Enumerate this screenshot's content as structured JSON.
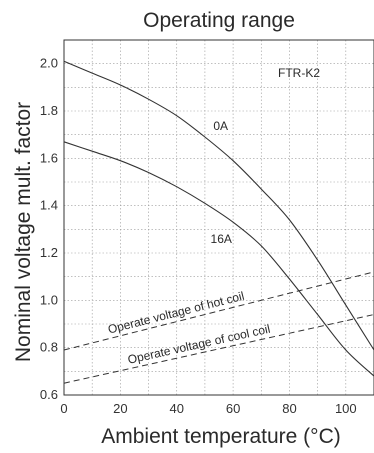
{
  "chart_data": {
    "type": "line",
    "title": "Operating range",
    "xlabel": "Ambient temperature (°C)",
    "ylabel": "Nominal voltage mult. factor",
    "xlim": [
      0,
      110
    ],
    "ylim": [
      0.6,
      2.1
    ],
    "x_ticks": [
      "0",
      "20",
      "40",
      "60",
      "80",
      "100"
    ],
    "y_ticks": [
      "0.6",
      "0.8",
      "1.0",
      "1.2",
      "1.4",
      "1.6",
      "1.8",
      "2.0"
    ],
    "grid": true,
    "annotations": [
      "FTR-K2"
    ],
    "series": [
      {
        "name": "0A",
        "style": "solid",
        "x": [
          0,
          10,
          20,
          30,
          40,
          50,
          60,
          70,
          80,
          90,
          100,
          110
        ],
        "y": [
          2.01,
          1.96,
          1.91,
          1.85,
          1.78,
          1.69,
          1.59,
          1.47,
          1.34,
          1.17,
          0.98,
          0.79
        ]
      },
      {
        "name": "16A",
        "style": "solid",
        "x": [
          0,
          10,
          20,
          30,
          40,
          50,
          60,
          70,
          80,
          90,
          100,
          110
        ],
        "y": [
          1.67,
          1.63,
          1.59,
          1.54,
          1.48,
          1.41,
          1.33,
          1.23,
          1.09,
          0.94,
          0.79,
          0.68
        ]
      },
      {
        "name": "Operate voltage of hot coil",
        "style": "dashed",
        "x": [
          0,
          110
        ],
        "y": [
          0.79,
          1.12
        ]
      },
      {
        "name": "Operate voltage of cool coil",
        "style": "dashed",
        "x": [
          0,
          110
        ],
        "y": [
          0.65,
          0.94
        ]
      }
    ]
  }
}
